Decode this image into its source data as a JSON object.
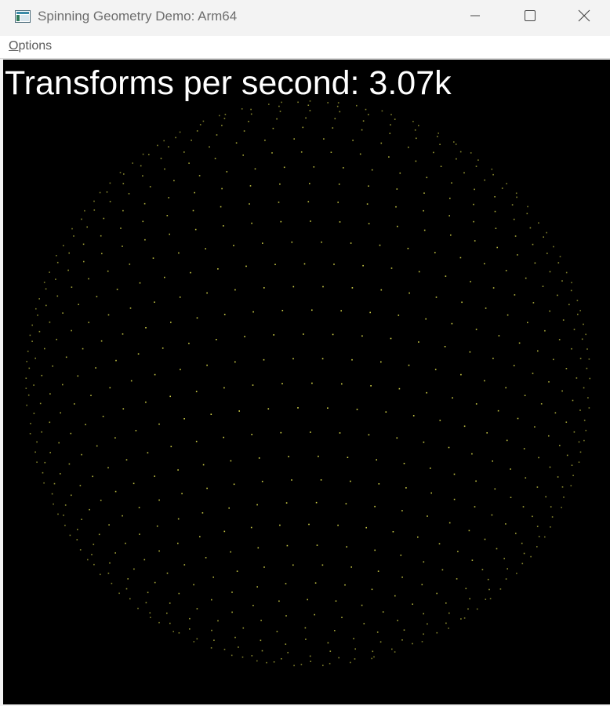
{
  "window": {
    "title": "Spinning Geometry Demo: Arm64",
    "caption_buttons": [
      "minimize",
      "maximize",
      "close"
    ]
  },
  "menu": {
    "options_label_first": "O",
    "options_label_rest": "ptions"
  },
  "canvas": {
    "transforms_label": "Transforms per second:",
    "transforms_value": "3.07k",
    "background": "#000000",
    "point_color": "#d8d84a",
    "text_color": "#ffffff"
  }
}
